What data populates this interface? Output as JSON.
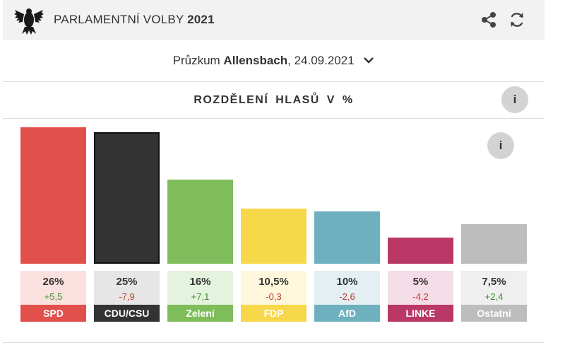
{
  "header": {
    "title_prefix": "PARLAMENTNÍ VOLBY",
    "title_year": "2021",
    "icons": [
      "bundestag-eagle-icon",
      "share-icon",
      "refresh-icon"
    ]
  },
  "poll": {
    "prefix": "Průzkum",
    "institute": "Allensbach",
    "date": ", 24.09.2021"
  },
  "section": {
    "title": "ROZDĚLENÍ HLASŮ V %",
    "info_label": "i"
  },
  "chart_info_label": "i",
  "chart_data": {
    "type": "bar",
    "title": "ROZDĚLENÍ HLASŮ V %",
    "categories": [
      "SPD",
      "CDU/CSU",
      "Zelení",
      "FDP",
      "AfD",
      "LINKE",
      "Ostatní"
    ],
    "values": [
      26,
      25,
      16,
      10.5,
      10,
      5,
      7.5
    ],
    "value_labels": [
      "26%",
      "25%",
      "16%",
      "10,5%",
      "10%",
      "5%",
      "7,5%"
    ],
    "changes": [
      "+5,5",
      "-7,9",
      "+7,1",
      "-0,3",
      "-2,6",
      "-4,2",
      "+2,4"
    ],
    "colors": [
      "#e2504c",
      "#333333",
      "#7fbd5b",
      "#f7d84a",
      "#6fb0bf",
      "#b93866",
      "#bdbdbd"
    ],
    "card_colors": [
      "#fbe0e0",
      "#e6e6e6",
      "#e5f2de",
      "#fff7dc",
      "#e3eff2",
      "#f4dde7",
      "#efefef"
    ],
    "ylim": [
      0,
      26
    ],
    "grid": false,
    "legend": "none"
  }
}
